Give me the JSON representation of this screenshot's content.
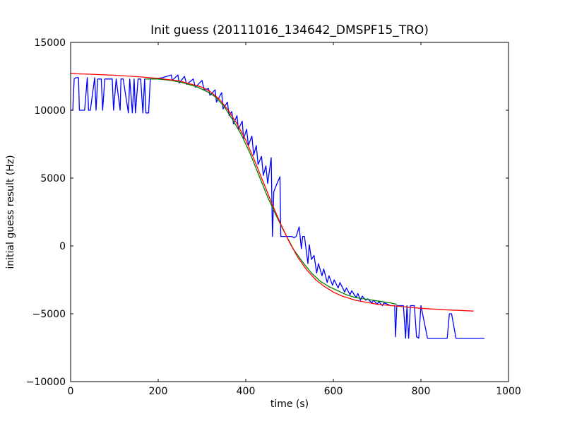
{
  "chart_data": {
    "type": "line",
    "title": "Init guess (20111016_134642_DMSPF15_TRO)",
    "xlabel": "time (s)",
    "ylabel": "initial guess result (Hz)",
    "xlim": [
      0,
      1000
    ],
    "ylim": [
      -10000,
      15000
    ],
    "x_ticks": [
      0,
      200,
      400,
      600,
      800,
      1000
    ],
    "x_tick_labels": [
      "0",
      "200",
      "400",
      "600",
      "800",
      "1000"
    ],
    "y_ticks": [
      -10000,
      -5000,
      0,
      5000,
      10000,
      15000
    ],
    "y_tick_labels": [
      "−10000",
      "−5000",
      "0",
      "5000",
      "10000",
      "15000"
    ],
    "grid": false,
    "legend": "none",
    "series": [
      {
        "color": "#0000ff",
        "x": [
          0,
          5,
          8,
          12,
          18,
          20,
          25,
          32,
          38,
          41,
          45,
          55,
          58,
          62,
          70,
          73,
          78,
          95,
          98,
          104,
          113,
          115,
          120,
          132,
          135,
          141,
          145,
          148,
          154,
          160,
          165,
          169,
          172,
          178,
          182,
          190,
          210,
          230,
          232,
          245,
          248,
          260,
          265,
          280,
          285,
          300,
          305,
          315,
          318,
          330,
          333,
          345,
          348,
          358,
          362,
          368,
          372,
          380,
          383,
          392,
          395,
          402,
          406,
          414,
          418,
          424,
          428,
          436,
          440,
          446,
          450,
          458,
          461,
          464,
          470,
          478,
          480,
          482,
          505,
          510,
          515,
          522,
          527,
          530,
          534,
          542,
          545,
          550,
          556,
          562,
          566,
          574,
          578,
          586,
          590,
          598,
          602,
          611,
          615,
          626,
          630,
          638,
          642,
          652,
          656,
          662,
          666,
          674,
          678,
          688,
          692,
          700,
          704,
          712,
          716,
          724,
          730,
          740,
          742,
          745,
          750,
          755,
          760,
          765,
          768,
          772,
          776,
          780,
          785,
          790,
          795,
          800,
          815,
          840,
          845,
          850,
          860,
          865,
          870,
          880,
          900,
          920,
          945
        ],
        "y": [
          10000,
          10000,
          12300,
          12400,
          12400,
          10000,
          10000,
          10000,
          12400,
          10000,
          10000,
          12400,
          10000,
          12300,
          12300,
          10000,
          12300,
          12300,
          10000,
          12300,
          10000,
          12300,
          12300,
          9800,
          12300,
          9800,
          12300,
          9800,
          12300,
          12300,
          9800,
          12300,
          9800,
          9800,
          12300,
          12300,
          12400,
          12600,
          12200,
          12600,
          12000,
          12500,
          11900,
          12300,
          11700,
          12200,
          11500,
          11600,
          11100,
          11500,
          10600,
          11300,
          10100,
          10600,
          9600,
          9900,
          9000,
          9600,
          8600,
          9200,
          7900,
          8600,
          7400,
          8100,
          6700,
          7400,
          6000,
          6600,
          5200,
          5900,
          4600,
          6500,
          700,
          4000,
          4500,
          5100,
          700,
          700,
          700,
          600,
          700,
          1400,
          -200,
          700,
          700,
          -1300,
          100,
          -1000,
          -700,
          -2000,
          -1300,
          -2200,
          -1700,
          -2700,
          -2200,
          -2900,
          -2500,
          -3100,
          -2700,
          -3400,
          -3100,
          -3600,
          -3300,
          -3800,
          -3500,
          -4000,
          -3700,
          -4000,
          -3900,
          -4200,
          -4000,
          -4300,
          -4100,
          -4400,
          -4200,
          -4300,
          -4400,
          -4400,
          -6700,
          -4400,
          -4400,
          -4400,
          -4400,
          -6800,
          -4400,
          -6800,
          -4400,
          -4400,
          -4400,
          -6700,
          -6800,
          -4400,
          -6800,
          -6800,
          -6800,
          -6800,
          -6800,
          -5000,
          -5000,
          -6800,
          -6800,
          -6800,
          -6800
        ]
      },
      {
        "color": "#008000",
        "x": [
          170,
          200,
          230,
          260,
          290,
          310,
          330,
          350,
          370,
          390,
          410,
          430,
          450,
          470,
          490,
          510,
          530,
          550,
          570,
          590,
          610,
          630,
          650,
          670,
          690,
          710,
          730,
          745
        ],
        "y": [
          12300,
          12300,
          12200,
          12000,
          11700,
          11400,
          11000,
          10300,
          9300,
          8200,
          6800,
          5200,
          3600,
          2200,
          900,
          -300,
          -1200,
          -2000,
          -2600,
          -3000,
          -3300,
          -3600,
          -3800,
          -3900,
          -4000,
          -4100,
          -4200,
          -4300
        ]
      },
      {
        "color": "#ff0000",
        "x": [
          0,
          50,
          100,
          150,
          200,
          250,
          300,
          320,
          340,
          360,
          380,
          400,
          420,
          440,
          460,
          480,
          500,
          520,
          540,
          560,
          580,
          600,
          620,
          650,
          700,
          750,
          800,
          850,
          920
        ],
        "y": [
          12700,
          12650,
          12580,
          12480,
          12350,
          12150,
          11700,
          11350,
          10800,
          10000,
          9000,
          7800,
          6300,
          4700,
          3100,
          1600,
          250,
          -900,
          -1800,
          -2500,
          -3000,
          -3400,
          -3700,
          -4000,
          -4300,
          -4450,
          -4600,
          -4700,
          -4800
        ]
      }
    ]
  }
}
